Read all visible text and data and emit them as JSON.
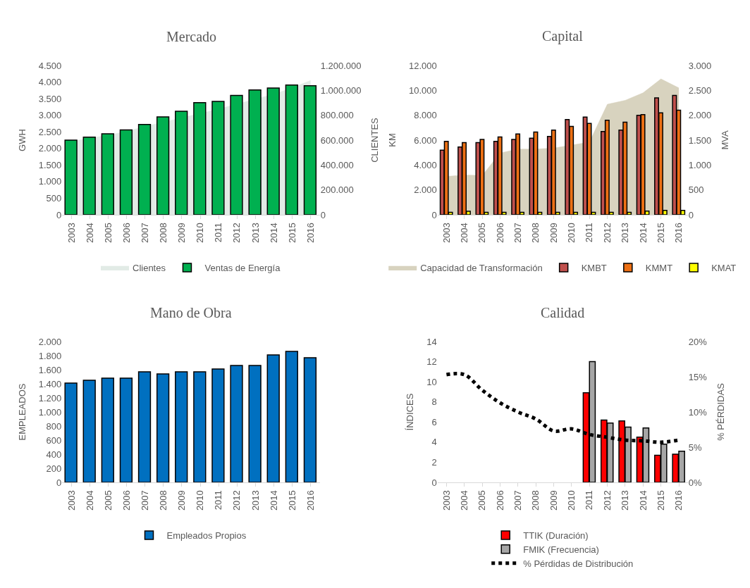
{
  "chart_data": [
    {
      "type": "bar",
      "title": "Mercado",
      "ylabel": "GWH",
      "y2label": "CLIENTES",
      "legend": "bottom",
      "categories": [
        "2003",
        "2004",
        "2005",
        "2006",
        "2007",
        "2008",
        "2009",
        "2010",
        "2011",
        "2012",
        "2013",
        "2014",
        "2015",
        "2016"
      ],
      "ylim": [
        0,
        4500
      ],
      "yticks": [
        0,
        500,
        {
          "value": 1000,
          "label": "1.000"
        },
        {
          "value": 1500,
          "label": "1.500"
        },
        {
          "value": 2000,
          "label": "2.000"
        },
        {
          "value": 2500,
          "label": "2.500"
        },
        {
          "value": 3000,
          "label": "3.000"
        },
        {
          "value": 3500,
          "label": "3.500"
        },
        {
          "value": 4000,
          "label": "4.000"
        },
        {
          "value": 4500,
          "label": "4.500"
        }
      ],
      "y2lim": [
        0,
        1200000
      ],
      "y2ticks": [
        0,
        {
          "value": 200000,
          "label": "200.000"
        },
        {
          "value": 400000,
          "label": "400.000"
        },
        {
          "value": 600000,
          "label": "600.000"
        },
        {
          "value": 800000,
          "label": "800.000"
        },
        {
          "value": 1000000,
          "label": "1.000.000"
        },
        {
          "value": 1200000,
          "label": "1.200.000"
        }
      ],
      "series": [
        {
          "name": "Clientes",
          "type": "area",
          "axis": "y2",
          "color": "#e2ebe6",
          "values": [
            590000,
            615000,
            640000,
            670000,
            710000,
            745000,
            780000,
            815000,
            850000,
            890000,
            930000,
            970000,
            1020000,
            1080000
          ]
        },
        {
          "name": "Ventas de Energía",
          "color": "#00b050",
          "values": [
            2250,
            2340,
            2440,
            2560,
            2720,
            2950,
            3120,
            3380,
            3420,
            3600,
            3760,
            3820,
            3910,
            3890
          ]
        }
      ]
    },
    {
      "type": "bar",
      "title": "Capital",
      "ylabel": "KM",
      "y2label": "MVA",
      "legend": "bottom",
      "categories": [
        "2003",
        "2004",
        "2005",
        "2006",
        "2007",
        "2008",
        "2009",
        "2010",
        "2011",
        "2012",
        "2013",
        "2014",
        "2015",
        "2016"
      ],
      "ylim": [
        0,
        12000
      ],
      "yticks": [
        0,
        {
          "value": 2000,
          "label": "2.000"
        },
        {
          "value": 4000,
          "label": "4.000"
        },
        {
          "value": 6000,
          "label": "6.000"
        },
        {
          "value": 8000,
          "label": "8.000"
        },
        {
          "value": 10000,
          "label": "10.000"
        },
        {
          "value": 12000,
          "label": "12.000"
        }
      ],
      "y2lim": [
        0,
        3000
      ],
      "y2ticks": [
        0,
        500,
        {
          "value": 1000,
          "label": "1.000"
        },
        {
          "value": 1500,
          "label": "1.500"
        },
        {
          "value": 2000,
          "label": "2.000"
        },
        {
          "value": 2500,
          "label": "2.500"
        },
        {
          "value": 3000,
          "label": "3.000"
        }
      ],
      "series": [
        {
          "name": "Capacidad de Transformación",
          "type": "area",
          "axis": "y2",
          "color": "#d8d3bf",
          "values": [
            770,
            800,
            790,
            1240,
            1320,
            1320,
            1340,
            1400,
            1460,
            2220,
            2300,
            2450,
            2730,
            2550
          ]
        },
        {
          "name": "KMBT",
          "color": "#c0504d",
          "values": [
            5200,
            5450,
            5800,
            5900,
            6050,
            6150,
            6300,
            7650,
            7850,
            6700,
            6800,
            8000,
            9400,
            9600
          ]
        },
        {
          "name": "KMMT",
          "color": "#ed7014",
          "values": [
            5900,
            5800,
            6050,
            6250,
            6500,
            6650,
            6800,
            7100,
            7350,
            7600,
            7450,
            8050,
            8200,
            8400
          ]
        },
        {
          "name": "KMAT",
          "color": "#ffff00",
          "values": [
            200,
            280,
            200,
            200,
            200,
            200,
            200,
            200,
            200,
            200,
            200,
            300,
            350,
            350
          ]
        }
      ]
    },
    {
      "type": "bar",
      "title": "Mano de Obra",
      "ylabel": "EMPLEADOS",
      "legend": "bottom",
      "categories": [
        "2003",
        "2004",
        "2005",
        "2006",
        "2007",
        "2008",
        "2009",
        "2010",
        "2011",
        "2012",
        "2013",
        "2014",
        "2015",
        "2016"
      ],
      "ylim": [
        0,
        2000
      ],
      "yticks": [
        0,
        200,
        400,
        600,
        800,
        {
          "value": 1000,
          "label": "1.000"
        },
        {
          "value": 1200,
          "label": "1.200"
        },
        {
          "value": 1400,
          "label": "1.400"
        },
        {
          "value": 1600,
          "label": "1.600"
        },
        {
          "value": 1800,
          "label": "1.800"
        },
        {
          "value": 2000,
          "label": "2.000"
        }
      ],
      "series": [
        {
          "name": "Empleados Propios",
          "color": "#0070c0",
          "values": [
            1410,
            1450,
            1480,
            1480,
            1570,
            1540,
            1570,
            1570,
            1610,
            1660,
            1660,
            1810,
            1860,
            1770
          ]
        }
      ]
    },
    {
      "type": "bar",
      "title": "Calidad",
      "ylabel": "ÍNDICES",
      "y2label": "% PÉRDIDAS",
      "legend": "bottom",
      "categories": [
        "2003",
        "2004",
        "2005",
        "2006",
        "2007",
        "2008",
        "2009",
        "2010",
        "2011",
        "2012",
        "2013",
        "2014",
        "2015",
        "2016"
      ],
      "ylim": [
        0,
        14
      ],
      "yticks": [
        0,
        2,
        4,
        6,
        8,
        10,
        12,
        14
      ],
      "y2lim": [
        0,
        20
      ],
      "y2ticks": [
        {
          "value": 0,
          "label": "0%"
        },
        {
          "value": 5,
          "label": "5%"
        },
        {
          "value": 10,
          "label": "10%"
        },
        {
          "value": 15,
          "label": "15%"
        },
        {
          "value": 20,
          "label": "20%"
        }
      ],
      "series": [
        {
          "name": "TTIK (Duración)",
          "color": "#ff0000",
          "values": [
            null,
            null,
            null,
            null,
            null,
            null,
            null,
            null,
            8.9,
            6.2,
            6.1,
            4.5,
            2.7,
            2.8
          ]
        },
        {
          "name": "FMIK (Frecuencia)",
          "color": "#a6a6a6",
          "values": [
            null,
            null,
            null,
            null,
            null,
            null,
            null,
            null,
            12.0,
            5.9,
            5.5,
            5.4,
            3.8,
            3.1
          ]
        },
        {
          "name": "% Pérdidas de Distribución",
          "type": "line",
          "axis": "y2",
          "color": "#000000",
          "line_style": "dotted",
          "values": [
            15.3,
            15.3,
            13.1,
            11.3,
            10.0,
            9.0,
            7.3,
            7.6,
            6.8,
            6.4,
            6.0,
            5.9,
            5.7,
            6.0
          ]
        }
      ]
    }
  ]
}
